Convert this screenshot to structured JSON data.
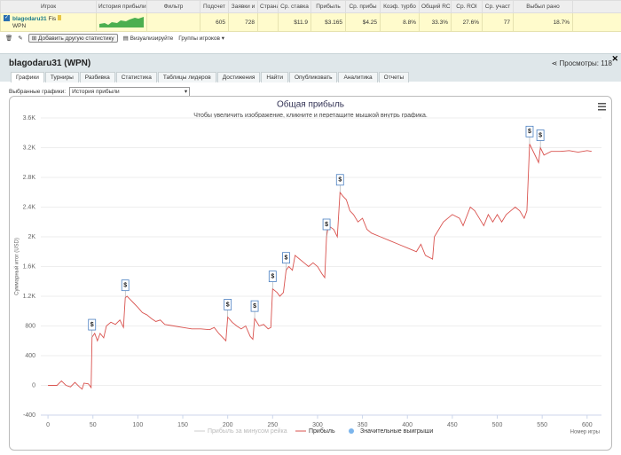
{
  "header_table": {
    "columns": [
      "Игрок",
      "История прибыли",
      "Фильтр",
      "Подсчет",
      "Заявки и",
      "Страна",
      "Ср. ставка",
      "Прибыль",
      "Ср. прибы",
      "Коэф. турбо",
      "Общий RC",
      "Ср. ROI",
      "Ср. участ",
      "Выбыл рано"
    ],
    "row": {
      "player": {
        "name": "blagodaru31",
        "tag": "Fis",
        "network": "WPN"
      },
      "cells": [
        null,
        null,
        605,
        728,
        null,
        "$11.9",
        "$3.165",
        "$4.25",
        "8.8%",
        "33.3%",
        "27.6%",
        77,
        "18.7%"
      ]
    }
  },
  "toolbar": {
    "add_button": "Добавить другую статистику",
    "visualize": "Визуализируйте",
    "groups": "Группы игроков"
  },
  "panel": {
    "title": "blagodaru31 (WPN)",
    "views": "Просмотры: 118",
    "tabs": [
      "Графики",
      "Турниры",
      "Разбивка",
      "Статистика",
      "Таблицы лидеров",
      "Достижения",
      "Найти",
      "Опубликовать",
      "Аналитика",
      "Отчеты"
    ],
    "selected_label": "Выбранные графики:",
    "selected_value": "История прибыли"
  },
  "chart_data": {
    "type": "line",
    "title": "Общая прибыль",
    "subtitle": "Чтобы увеличить изображение, кликните и перетащите мышкой внутрь графика.",
    "ylabel": "Суммарный итог (USD)",
    "xlabel": "Номер игры",
    "xlim": [
      -8,
      616
    ],
    "xticks": [
      0,
      50,
      100,
      150,
      200,
      250,
      300,
      350,
      400,
      450,
      500,
      550,
      600
    ],
    "ylim": [
      -400,
      3600
    ],
    "yticks": [
      {
        "value": -400,
        "label": "-400"
      },
      0,
      400,
      800,
      {
        "value": 1200,
        "label": "1.2K"
      },
      {
        "value": 1600,
        "label": "1.6K"
      },
      {
        "value": 2000,
        "label": "2K"
      },
      {
        "value": 2400,
        "label": "2.4K"
      },
      {
        "value": 2800,
        "label": "2.8K"
      },
      {
        "value": 3200,
        "label": "3.2K"
      },
      {
        "value": 3600,
        "label": "3.6K"
      }
    ],
    "grid": true,
    "marker_label": "$",
    "series": [
      {
        "name": "Прибыль за минусом рейка",
        "color": "#cccccc",
        "visible": false
      },
      {
        "name": "Прибыль",
        "color": "#d9534f",
        "x": [
          0,
          10,
          15,
          20,
          25,
          30,
          35,
          38,
          40,
          45,
          48,
          49,
          52,
          55,
          58,
          62,
          65,
          70,
          75,
          80,
          84,
          86,
          88,
          92,
          96,
          100,
          105,
          110,
          115,
          120,
          125,
          130,
          140,
          150,
          160,
          170,
          180,
          185,
          190,
          198,
          200,
          205,
          210,
          215,
          220,
          225,
          228,
          230,
          235,
          240,
          245,
          248,
          250,
          255,
          258,
          262,
          265,
          268,
          272,
          275,
          280,
          285,
          290,
          295,
          300,
          305,
          308,
          310,
          312,
          318,
          322,
          325,
          328,
          332,
          336,
          340,
          345,
          350,
          355,
          360,
          370,
          380,
          390,
          400,
          410,
          415,
          420,
          428,
          430,
          435,
          440,
          445,
          450,
          458,
          462,
          470,
          475,
          480,
          485,
          490,
          495,
          500,
          505,
          510,
          515,
          520,
          525,
          530,
          533,
          536,
          538,
          542,
          546,
          548,
          552,
          560,
          570,
          580,
          590,
          600,
          605
        ],
        "values": [
          0,
          0,
          60,
          0,
          -20,
          40,
          -20,
          -50,
          30,
          20,
          -30,
          650,
          700,
          600,
          700,
          640,
          800,
          850,
          820,
          880,
          780,
          1180,
          1200,
          1150,
          1100,
          1050,
          980,
          950,
          900,
          860,
          880,
          820,
          800,
          780,
          760,
          760,
          750,
          780,
          700,
          600,
          920,
          850,
          800,
          760,
          800,
          660,
          620,
          900,
          800,
          820,
          760,
          780,
          1300,
          1250,
          1200,
          1250,
          1550,
          1600,
          1550,
          1750,
          1700,
          1650,
          1600,
          1650,
          1600,
          1500,
          1450,
          2000,
          2150,
          2100,
          2000,
          2600,
          2550,
          2500,
          2350,
          2300,
          2200,
          2250,
          2100,
          2050,
          2000,
          1950,
          1900,
          1850,
          1800,
          1900,
          1750,
          1700,
          2000,
          2100,
          2200,
          2250,
          2300,
          2250,
          2150,
          2400,
          2350,
          2250,
          2150,
          2300,
          2200,
          2300,
          2200,
          2300,
          2350,
          2400,
          2350,
          2250,
          2350,
          3250,
          3200,
          3100,
          3000,
          3200,
          3100,
          3150,
          3150,
          3160,
          3140,
          3160,
          3150
        ]
      },
      {
        "name": "Значительные выигрыши",
        "color": "#7cb5ec",
        "type": "flag",
        "x": [
          49,
          86,
          200,
          230,
          250,
          265,
          310,
          325,
          536,
          548
        ],
        "values": [
          650,
          1180,
          920,
          900,
          1300,
          1550,
          2000,
          2600,
          3250,
          3200
        ]
      }
    ]
  }
}
